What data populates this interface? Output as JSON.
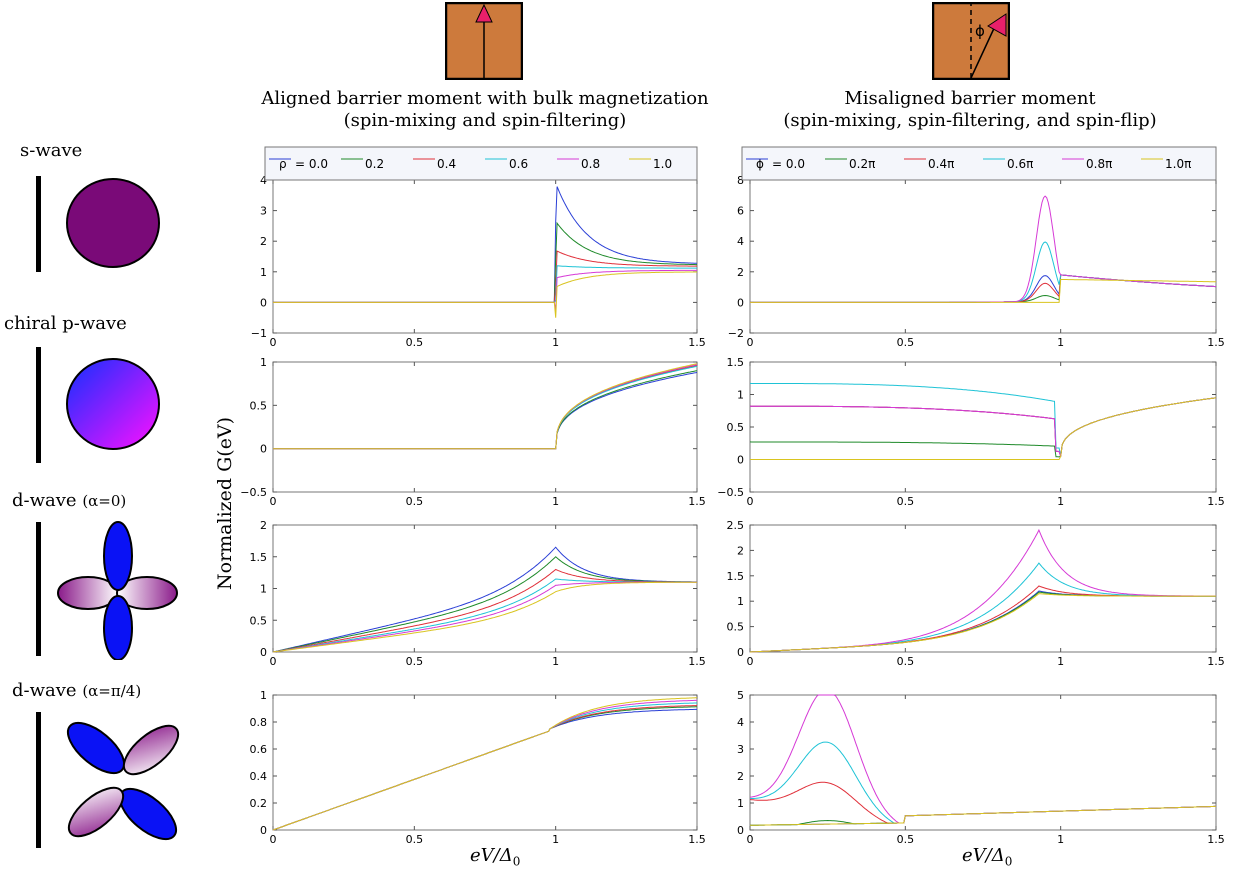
{
  "columns": [
    {
      "title_line1": "Aligned barrier moment with bulk magnetization",
      "title_line2": "(spin-mixing and spin-filtering)"
    },
    {
      "title_line1": "Misaligned barrier moment",
      "title_line2": "(spin-mixing, spin-filtering, and spin-flip)"
    }
  ],
  "rows": [
    {
      "label": "s-wave",
      "suffix": ""
    },
    {
      "label": "chiral p-wave",
      "suffix": ""
    },
    {
      "label": "d-wave",
      "suffix": "(α=0)"
    },
    {
      "label": "d-wave",
      "suffix": "(α=π/4)"
    }
  ],
  "y_axis_label": "Normalized G(eV)",
  "x_axis_label": "eV/Δ0",
  "inset_symbol": "ϕ",
  "colors": {
    "blue": "#2a3fd6",
    "green": "#1f8a2a",
    "red": "#e0303a",
    "cyan": "#1ec3d6",
    "magenta": "#d63ad6",
    "yellow": "#d9c41f",
    "inset_fill": "#cd7a3c",
    "arrow": "#e8206a"
  },
  "chart_data": [
    {
      "type": "line",
      "panel": "s-wave aligned",
      "legend_prefix": "ρ",
      "x": "eV/Δ0",
      "xlim": [
        0,
        1.5
      ],
      "ylim": [
        -1,
        4
      ],
      "xticks": [
        "0",
        "0.5",
        "1",
        "1.5"
      ],
      "yticks": [
        "-1",
        "0",
        "1",
        "2",
        "3",
        "4"
      ],
      "series": [
        {
          "name": "= 0.0",
          "peak": 3.9,
          "tail": 1.25
        },
        {
          "name": "0.2",
          "peak": 2.65,
          "tail": 1.22
        },
        {
          "name": "0.4",
          "peak": 1.7,
          "tail": 1.18
        },
        {
          "name": "0.6",
          "peak": 1.2,
          "tail": 1.12
        },
        {
          "name": "0.8",
          "peak": 0.8,
          "tail": 1.05
        },
        {
          "name": "1.0",
          "peak": 0.5,
          "tail": 1.0
        }
      ]
    },
    {
      "type": "line",
      "panel": "s-wave misaligned",
      "legend_prefix": "ϕ",
      "x": "eV/Δ0",
      "xlim": [
        0,
        1.5
      ],
      "ylim": [
        -2,
        8
      ],
      "xticks": [
        "0",
        "0.5",
        "1",
        "1.5"
      ],
      "yticks": [
        "-2",
        "0",
        "2",
        "4",
        "6",
        "8"
      ],
      "series": [
        {
          "name": "= 0.0",
          "peak": 1.7
        },
        {
          "name": "0.2π",
          "peak": 0.4
        },
        {
          "name": "0.4π",
          "peak": 1.2
        },
        {
          "name": "0.6π",
          "peak": 3.9
        },
        {
          "name": "0.8π",
          "peak": 6.9
        },
        {
          "name": "1.0π",
          "peak": 0.0
        }
      ]
    },
    {
      "type": "line",
      "panel": "p-wave aligned",
      "x": "eV/Δ0",
      "xlim": [
        0,
        1.5
      ],
      "ylim": [
        -0.5,
        1
      ],
      "xticks": [
        "0",
        "0.5",
        "1",
        "1.5"
      ],
      "yticks": [
        "-0.5",
        "0",
        "0.5",
        "1"
      ],
      "series": [
        {
          "name": "= 0.0",
          "end": 0.88
        },
        {
          "name": "0.2",
          "end": 0.9
        },
        {
          "name": "0.4",
          "end": 0.96
        },
        {
          "name": "0.6",
          "end": 0.95
        },
        {
          "name": "0.8",
          "end": 0.97
        },
        {
          "name": "1.0",
          "end": 0.98
        }
      ]
    },
    {
      "type": "line",
      "panel": "p-wave misaligned",
      "x": "eV/Δ0",
      "xlim": [
        0,
        1.5
      ],
      "ylim": [
        -0.5,
        1.5
      ],
      "xticks": [
        "0",
        "0.5",
        "1",
        "1.5"
      ],
      "yticks": [
        "-0.5",
        "0",
        "0.5",
        "1",
        "1.5"
      ],
      "series": [
        {
          "name": "= 0.0",
          "start": 0.82
        },
        {
          "name": "0.2π",
          "start": 0.27
        },
        {
          "name": "0.4π",
          "start": 0.82
        },
        {
          "name": "0.6π",
          "start": 1.17
        },
        {
          "name": "0.8π",
          "start": 0.82
        },
        {
          "name": "1.0π",
          "start": 0.0
        }
      ]
    },
    {
      "type": "line",
      "panel": "d-wave a=0 aligned",
      "x": "eV/Δ0",
      "xlim": [
        0,
        1.5
      ],
      "ylim": [
        0,
        2
      ],
      "xticks": [
        "0",
        "0.5",
        "1",
        "1.5"
      ],
      "yticks": [
        "0",
        "0.5",
        "1",
        "1.5",
        "2"
      ],
      "series": [
        {
          "name": "= 0.0",
          "peak": 1.65
        },
        {
          "name": "0.2",
          "peak": 1.5
        },
        {
          "name": "0.4",
          "peak": 1.3
        },
        {
          "name": "0.6",
          "peak": 1.15
        },
        {
          "name": "0.8",
          "peak": 1.05
        },
        {
          "name": "1.0",
          "peak": 0.95
        }
      ]
    },
    {
      "type": "line",
      "panel": "d-wave a=0 misaligned",
      "x": "eV/Δ0",
      "xlim": [
        0,
        1.5
      ],
      "ylim": [
        0,
        2.5
      ],
      "xticks": [
        "0",
        "0.5",
        "1",
        "1.5"
      ],
      "yticks": [
        "0",
        "0.5",
        "1",
        "1.5",
        "2",
        "2.5"
      ],
      "series": [
        {
          "name": "= 0.0",
          "peak": 1.2
        },
        {
          "name": "0.2π",
          "peak": 1.18
        },
        {
          "name": "0.4π",
          "peak": 1.3
        },
        {
          "name": "0.6π",
          "peak": 1.75
        },
        {
          "name": "0.8π",
          "peak": 2.4
        },
        {
          "name": "1.0π",
          "peak": 1.15
        }
      ]
    },
    {
      "type": "line",
      "panel": "d-wave a=pi/4 aligned",
      "x": "eV/Δ0",
      "xlim": [
        0,
        1.5
      ],
      "ylim": [
        0,
        1
      ],
      "xticks": [
        "0",
        "0.5",
        "1",
        "1.5"
      ],
      "yticks": [
        "0",
        "0.2",
        "0.4",
        "0.6",
        "0.8",
        "1"
      ],
      "series": [
        {
          "name": "= 0.0",
          "end": 0.9
        },
        {
          "name": "0.2",
          "end": 0.92
        },
        {
          "name": "0.4",
          "end": 0.93
        },
        {
          "name": "0.6",
          "end": 0.95
        },
        {
          "name": "0.8",
          "end": 0.97
        },
        {
          "name": "1.0",
          "end": 0.99
        }
      ]
    },
    {
      "type": "line",
      "panel": "d-wave a=pi/4 misaligned",
      "x": "eV/Δ0",
      "xlim": [
        0,
        1.5
      ],
      "ylim": [
        0,
        5
      ],
      "xticks": [
        "0",
        "0.5",
        "1",
        "1.5"
      ],
      "yticks": [
        "0",
        "1",
        "2",
        "3",
        "4",
        "5"
      ],
      "series": [
        {
          "name": "= 0.0",
          "peak": 0.1
        },
        {
          "name": "0.2π",
          "peak": 0.35
        },
        {
          "name": "0.4π",
          "peak": 1.2
        },
        {
          "name": "0.6π",
          "peak": 2.7
        },
        {
          "name": "0.8π",
          "peak": 4.65
        },
        {
          "name": "1.0π",
          "peak": 0.1
        }
      ]
    }
  ]
}
